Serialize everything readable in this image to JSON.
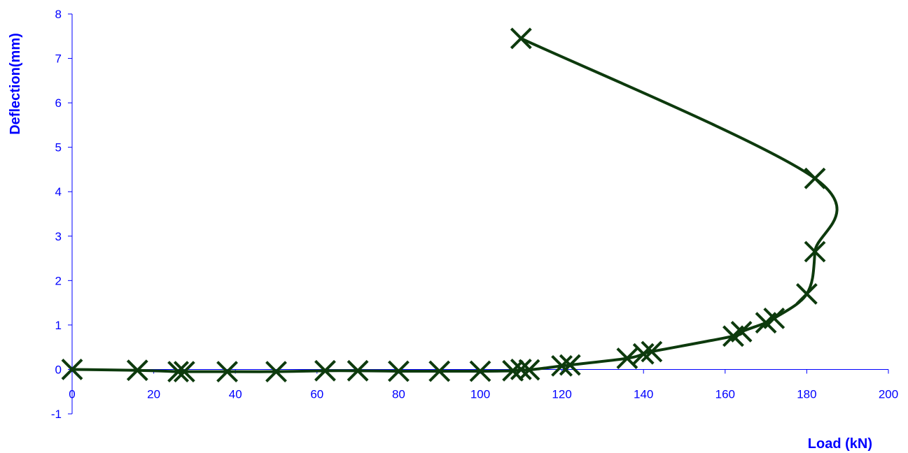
{
  "chart_data": {
    "type": "scatter",
    "title": "",
    "xlabel": "Load (kN)",
    "ylabel": "Deflection(mm)",
    "xlim": [
      0,
      200
    ],
    "ylim": [
      -1,
      8
    ],
    "xticks": [
      "0",
      "20",
      "40",
      "60",
      "80",
      "100",
      "120",
      "140",
      "160",
      "180",
      "200"
    ],
    "yticks": [
      "-1",
      "0",
      "1",
      "2",
      "3",
      "4",
      "5",
      "6",
      "7",
      "8"
    ],
    "grid": false,
    "legend": "none",
    "marker": "x",
    "series_color": "#0d3a0d",
    "axis_color": "#0000ff",
    "series": [
      {
        "points": [
          [
            0,
            0
          ],
          [
            16,
            -0.02
          ],
          [
            26,
            -0.05
          ],
          [
            27.5,
            -0.05
          ],
          [
            38,
            -0.05
          ],
          [
            50,
            -0.05
          ],
          [
            62,
            -0.03
          ],
          [
            70,
            -0.03
          ],
          [
            80,
            -0.04
          ],
          [
            90,
            -0.04
          ],
          [
            100,
            -0.04
          ],
          [
            108,
            -0.03
          ],
          [
            110,
            0
          ],
          [
            112,
            -0.01
          ],
          [
            120,
            0.08
          ],
          [
            122,
            0.1
          ],
          [
            136,
            0.25
          ],
          [
            140,
            0.35
          ],
          [
            142,
            0.4
          ],
          [
            162,
            0.75
          ],
          [
            164,
            0.85
          ],
          [
            170,
            1.05
          ],
          [
            172,
            1.15
          ],
          [
            180,
            1.7
          ],
          [
            182,
            2.65
          ],
          [
            182,
            4.3
          ],
          [
            110,
            7.45
          ]
        ]
      }
    ]
  }
}
